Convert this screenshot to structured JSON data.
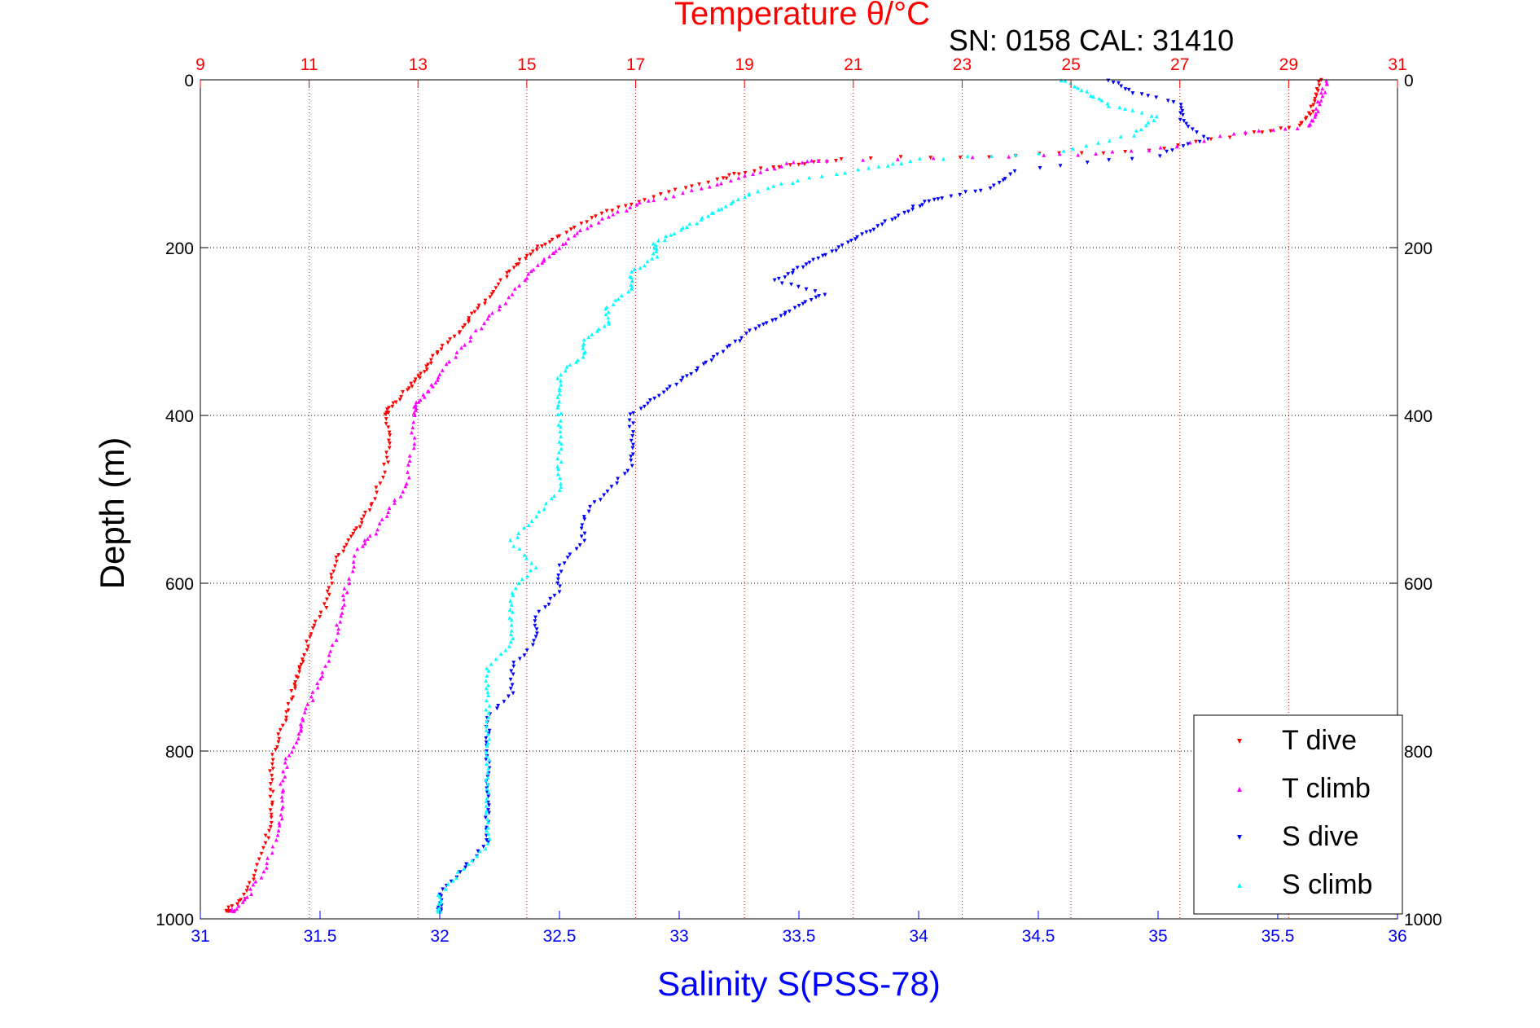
{
  "chart_data": {
    "type": "scatter",
    "title": "Temperature θ/°C",
    "subtitle": "SN: 0158  CAL: 31410",
    "xlabel": "Salinity S(PSS-78)",
    "ylabel": "Depth (m)",
    "x_bottom": {
      "label": "Salinity S(PSS-78)",
      "range": [
        31,
        36
      ],
      "ticks": [
        "31",
        "31.5",
        "32",
        "32.5",
        "33",
        "33.5",
        "34",
        "34.5",
        "35",
        "35.5",
        "36"
      ],
      "color": "#0000ff"
    },
    "x_top": {
      "label": "Temperature θ/°C",
      "range": [
        9,
        31
      ],
      "ticks": [
        "9",
        "11",
        "13",
        "15",
        "17",
        "19",
        "21",
        "23",
        "25",
        "27",
        "29",
        "31"
      ],
      "color": "#ff0000",
      "grid": "dotted-red"
    },
    "y": {
      "label": "Depth (m)",
      "range": [
        0,
        1000
      ],
      "inverted": true,
      "ticks": [
        "0",
        "200",
        "400",
        "600",
        "800",
        "1000"
      ],
      "grid": "dotted-black"
    },
    "legend": {
      "placement": "bottom-right"
    },
    "series": [
      {
        "name": "T dive",
        "axis": "top",
        "marker": "triangle-down",
        "color": "#ff0000",
        "points": [
          [
            29.6,
            0
          ],
          [
            29.5,
            20
          ],
          [
            29.4,
            40
          ],
          [
            29.2,
            55
          ],
          [
            28.2,
            65
          ],
          [
            26.4,
            85
          ],
          [
            24.0,
            90
          ],
          [
            20.8,
            95
          ],
          [
            20.0,
            100
          ],
          [
            19.0,
            110
          ],
          [
            18.5,
            120
          ],
          [
            17.6,
            135
          ],
          [
            16.8,
            150
          ],
          [
            16.2,
            165
          ],
          [
            15.6,
            185
          ],
          [
            15.2,
            200
          ],
          [
            14.9,
            215
          ],
          [
            14.6,
            235
          ],
          [
            14.3,
            260
          ],
          [
            14.0,
            280
          ],
          [
            13.8,
            300
          ],
          [
            13.4,
            320
          ],
          [
            13.2,
            340
          ],
          [
            13.0,
            355
          ],
          [
            12.8,
            370
          ],
          [
            12.5,
            390
          ],
          [
            12.4,
            400
          ],
          [
            12.5,
            430
          ],
          [
            12.4,
            460
          ],
          [
            12.2,
            500
          ],
          [
            12.0,
            525
          ],
          [
            11.8,
            545
          ],
          [
            11.5,
            570
          ],
          [
            11.4,
            600
          ],
          [
            11.3,
            630
          ],
          [
            11.0,
            660
          ],
          [
            10.9,
            690
          ],
          [
            10.8,
            710
          ],
          [
            10.7,
            730
          ],
          [
            10.6,
            760
          ],
          [
            10.4,
            790
          ],
          [
            10.3,
            820
          ],
          [
            10.3,
            850
          ],
          [
            10.3,
            880
          ],
          [
            10.2,
            910
          ],
          [
            10.0,
            950
          ],
          [
            9.8,
            975
          ],
          [
            9.5,
            990
          ]
        ]
      },
      {
        "name": "T climb",
        "axis": "top",
        "marker": "triangle-up",
        "color": "#ff00ff",
        "points": [
          [
            29.7,
            0
          ],
          [
            29.6,
            20
          ],
          [
            29.5,
            40
          ],
          [
            29.4,
            55
          ],
          [
            28.0,
            65
          ],
          [
            26.4,
            85
          ],
          [
            24.5,
            90
          ],
          [
            20.5,
            95
          ],
          [
            19.8,
            100
          ],
          [
            19.0,
            115
          ],
          [
            18.2,
            130
          ],
          [
            17.2,
            145
          ],
          [
            16.6,
            160
          ],
          [
            16.0,
            180
          ],
          [
            15.6,
            200
          ],
          [
            15.3,
            215
          ],
          [
            15.0,
            235
          ],
          [
            14.6,
            265
          ],
          [
            14.2,
            290
          ],
          [
            13.8,
            320
          ],
          [
            13.4,
            350
          ],
          [
            13.2,
            370
          ],
          [
            13.0,
            385
          ],
          [
            12.9,
            400
          ],
          [
            12.9,
            440
          ],
          [
            12.8,
            480
          ],
          [
            12.5,
            510
          ],
          [
            12.2,
            540
          ],
          [
            11.9,
            560
          ],
          [
            11.7,
            600
          ],
          [
            11.6,
            630
          ],
          [
            11.5,
            660
          ],
          [
            11.3,
            700
          ],
          [
            11.1,
            730
          ],
          [
            10.9,
            760
          ],
          [
            10.8,
            780
          ],
          [
            10.6,
            810
          ],
          [
            10.5,
            840
          ],
          [
            10.5,
            870
          ],
          [
            10.4,
            900
          ],
          [
            10.2,
            940
          ],
          [
            9.9,
            970
          ],
          [
            9.6,
            990
          ]
        ]
      },
      {
        "name": "S dive",
        "axis": "bottom",
        "marker": "triangle-down",
        "color": "#0000ff",
        "points": [
          [
            34.8,
            0
          ],
          [
            34.9,
            15
          ],
          [
            35.1,
            30
          ],
          [
            35.1,
            50
          ],
          [
            35.2,
            70
          ],
          [
            35.0,
            90
          ],
          [
            34.4,
            110
          ],
          [
            34.3,
            130
          ],
          [
            34.1,
            140
          ],
          [
            34.0,
            150
          ],
          [
            33.9,
            165
          ],
          [
            33.8,
            180
          ],
          [
            33.7,
            195
          ],
          [
            33.6,
            210
          ],
          [
            33.5,
            225
          ],
          [
            33.4,
            240
          ],
          [
            33.6,
            255
          ],
          [
            33.5,
            270
          ],
          [
            33.4,
            285
          ],
          [
            33.3,
            300
          ],
          [
            33.2,
            320
          ],
          [
            33.1,
            340
          ],
          [
            33.0,
            360
          ],
          [
            32.9,
            380
          ],
          [
            32.8,
            400
          ],
          [
            32.8,
            430
          ],
          [
            32.8,
            460
          ],
          [
            32.7,
            490
          ],
          [
            32.6,
            520
          ],
          [
            32.6,
            550
          ],
          [
            32.5,
            580
          ],
          [
            32.5,
            610
          ],
          [
            32.4,
            640
          ],
          [
            32.4,
            670
          ],
          [
            32.3,
            700
          ],
          [
            32.3,
            730
          ],
          [
            32.2,
            760
          ],
          [
            32.2,
            790
          ],
          [
            32.2,
            820
          ],
          [
            32.2,
            850
          ],
          [
            32.2,
            880
          ],
          [
            32.2,
            910
          ],
          [
            32.1,
            940
          ],
          [
            32.0,
            970
          ],
          [
            32.0,
            990
          ]
        ]
      },
      {
        "name": "S climb",
        "axis": "bottom",
        "marker": "triangle-up",
        "color": "#00ffff",
        "points": [
          [
            34.6,
            0
          ],
          [
            34.7,
            15
          ],
          [
            34.8,
            30
          ],
          [
            35.0,
            45
          ],
          [
            34.9,
            65
          ],
          [
            34.6,
            85
          ],
          [
            34.0,
            95
          ],
          [
            33.8,
            105
          ],
          [
            33.5,
            120
          ],
          [
            33.3,
            135
          ],
          [
            33.2,
            150
          ],
          [
            33.1,
            165
          ],
          [
            33.0,
            180
          ],
          [
            32.9,
            195
          ],
          [
            32.9,
            210
          ],
          [
            32.8,
            230
          ],
          [
            32.8,
            250
          ],
          [
            32.7,
            270
          ],
          [
            32.7,
            290
          ],
          [
            32.6,
            310
          ],
          [
            32.6,
            330
          ],
          [
            32.5,
            350
          ],
          [
            32.5,
            375
          ],
          [
            32.5,
            400
          ],
          [
            32.5,
            430
          ],
          [
            32.5,
            460
          ],
          [
            32.5,
            490
          ],
          [
            32.4,
            520
          ],
          [
            32.3,
            550
          ],
          [
            32.4,
            580
          ],
          [
            32.3,
            610
          ],
          [
            32.3,
            640
          ],
          [
            32.3,
            670
          ],
          [
            32.2,
            700
          ],
          [
            32.2,
            730
          ],
          [
            32.2,
            760
          ],
          [
            32.2,
            790
          ],
          [
            32.2,
            820
          ],
          [
            32.2,
            850
          ],
          [
            32.2,
            880
          ],
          [
            32.2,
            910
          ],
          [
            32.1,
            940
          ],
          [
            32.0,
            970
          ],
          [
            32.0,
            990
          ]
        ]
      }
    ]
  }
}
